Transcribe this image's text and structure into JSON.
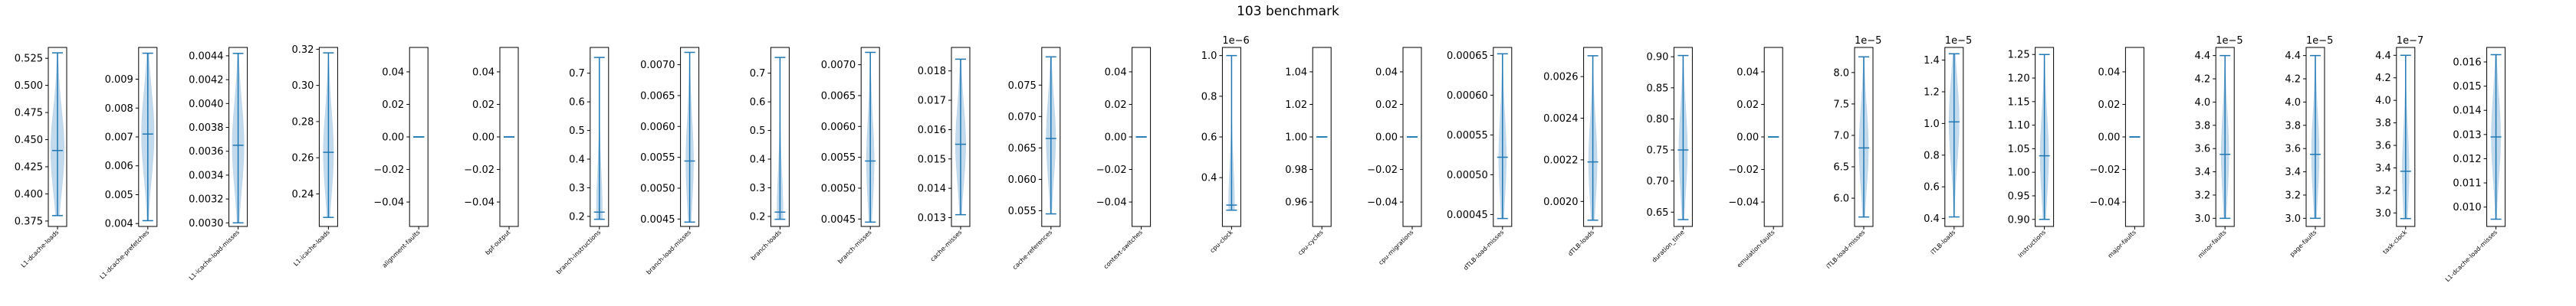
{
  "chart_data": {
    "type": "violin",
    "title": "103 benchmark",
    "colors": {
      "body": "#1f77b4",
      "fill": "#b8d3ea"
    },
    "panels": [
      {
        "name": "L1-dcache-loads",
        "ylim": [
          0.37,
          0.535
        ],
        "ticks": [
          0.375,
          0.4,
          0.425,
          0.45,
          0.475,
          0.5,
          0.525
        ],
        "ticklabels": [
          "0.375",
          "0.400",
          "0.425",
          "0.450",
          "0.475",
          "0.500",
          "0.525"
        ],
        "offset": "",
        "min": 0.38,
        "max": 0.53,
        "median": 0.44,
        "width": 0.8
      },
      {
        "name": "L1-dcache-prefetches",
        "ylim": [
          0.0039,
          0.0101
        ],
        "ticks": [
          0.004,
          0.005,
          0.006,
          0.007,
          0.008,
          0.009
        ],
        "ticklabels": [
          "0.004",
          "0.005",
          "0.006",
          "0.007",
          "0.008",
          "0.009"
        ],
        "offset": "",
        "min": 0.0041,
        "max": 0.0099,
        "median": 0.0071,
        "width": 0.75
      },
      {
        "name": "L1-icache-load-misses",
        "ylim": [
          0.00297,
          0.00447
        ],
        "ticks": [
          0.003,
          0.0032,
          0.0034,
          0.0036,
          0.0038,
          0.004,
          0.0042,
          0.0044
        ],
        "ticklabels": [
          "0.0030",
          "0.0032",
          "0.0034",
          "0.0036",
          "0.0038",
          "0.0040",
          "0.0042",
          "0.0044"
        ],
        "offset": "",
        "min": 0.003,
        "max": 0.00442,
        "median": 0.00365,
        "width": 0.7
      },
      {
        "name": "L1-icache-loads",
        "ylim": [
          0.222,
          0.321
        ],
        "ticks": [
          0.24,
          0.26,
          0.28,
          0.3,
          0.32
        ],
        "ticklabels": [
          "0.24",
          "0.26",
          "0.28",
          "0.30",
          "0.32"
        ],
        "offset": "",
        "min": 0.227,
        "max": 0.318,
        "median": 0.263,
        "width": 0.6
      },
      {
        "name": "alignment-faults",
        "ylim": [
          -0.055,
          0.055
        ],
        "ticks": [
          -0.04,
          -0.02,
          0.0,
          0.02,
          0.04
        ],
        "ticklabels": [
          "−0.04",
          "−0.02",
          "0.00",
          "0.02",
          "0.04"
        ],
        "offset": "",
        "min": 0.0,
        "max": 0.0,
        "median": 0.0,
        "width": 0.0
      },
      {
        "name": "bpf-output",
        "ylim": [
          -0.055,
          0.055
        ],
        "ticks": [
          -0.04,
          -0.02,
          0.0,
          0.02,
          0.04
        ],
        "ticklabels": [
          "−0.04",
          "−0.02",
          "0.00",
          "0.02",
          "0.04"
        ],
        "offset": "",
        "min": 0.0,
        "max": 0.0,
        "median": 0.0,
        "width": 0.0
      },
      {
        "name": "branch-instructions",
        "ylim": [
          0.165,
          0.79
        ],
        "ticks": [
          0.2,
          0.3,
          0.4,
          0.5,
          0.6,
          0.7
        ],
        "ticklabels": [
          "0.2",
          "0.3",
          "0.4",
          "0.5",
          "0.6",
          "0.7"
        ],
        "offset": "",
        "min": 0.19,
        "max": 0.755,
        "median": 0.215,
        "width": 0.35
      },
      {
        "name": "branch-load-misses",
        "ylim": [
          0.00438,
          0.00728
        ],
        "ticks": [
          0.0045,
          0.005,
          0.0055,
          0.006,
          0.0065,
          0.007
        ],
        "ticklabels": [
          "0.0045",
          "0.0050",
          "0.0055",
          "0.0060",
          "0.0065",
          "0.0070"
        ],
        "offset": "",
        "min": 0.00445,
        "max": 0.0072,
        "median": 0.00544,
        "width": 0.45
      },
      {
        "name": "branch-loads",
        "ylim": [
          0.165,
          0.79
        ],
        "ticks": [
          0.2,
          0.3,
          0.4,
          0.5,
          0.6,
          0.7
        ],
        "ticklabels": [
          "0.2",
          "0.3",
          "0.4",
          "0.5",
          "0.6",
          "0.7"
        ],
        "offset": "",
        "min": 0.19,
        "max": 0.755,
        "median": 0.215,
        "width": 0.35
      },
      {
        "name": "branch-misses",
        "ylim": [
          0.00438,
          0.00728
        ],
        "ticks": [
          0.0045,
          0.005,
          0.0055,
          0.006,
          0.0065,
          0.007
        ],
        "ticklabels": [
          "0.0045",
          "0.0050",
          "0.0055",
          "0.0060",
          "0.0065",
          "0.0070"
        ],
        "offset": "",
        "min": 0.00445,
        "max": 0.0072,
        "median": 0.00544,
        "width": 0.45
      },
      {
        "name": "cache-misses",
        "ylim": [
          0.0127,
          0.0188
        ],
        "ticks": [
          0.013,
          0.014,
          0.015,
          0.016,
          0.017,
          0.018
        ],
        "ticklabels": [
          "0.013",
          "0.014",
          "0.015",
          "0.016",
          "0.017",
          "0.018"
        ],
        "offset": "",
        "min": 0.0131,
        "max": 0.0184,
        "median": 0.0155,
        "width": 0.6
      },
      {
        "name": "cache-references",
        "ylim": [
          0.0525,
          0.081
        ],
        "ticks": [
          0.055,
          0.06,
          0.065,
          0.07,
          0.075
        ],
        "ticklabels": [
          "0.055",
          "0.060",
          "0.065",
          "0.070",
          "0.075"
        ],
        "offset": "",
        "min": 0.0545,
        "max": 0.0795,
        "median": 0.0665,
        "width": 0.55
      },
      {
        "name": "context-switches",
        "ylim": [
          -0.055,
          0.055
        ],
        "ticks": [
          -0.04,
          -0.02,
          0.0,
          0.02,
          0.04
        ],
        "ticklabels": [
          "−0.04",
          "−0.02",
          "0.00",
          "0.02",
          "0.04"
        ],
        "offset": "",
        "min": 0.0,
        "max": 0.0,
        "median": 0.0,
        "width": 0.0
      },
      {
        "name": "cpu-clock",
        "ylim": [
          0.16,
          1.04
        ],
        "ticks": [
          0.4,
          0.6,
          0.8,
          1.0
        ],
        "ticklabels": [
          "0.4",
          "0.6",
          "0.8",
          "1.0"
        ],
        "offset": "1e−6",
        "min": 0.24,
        "max": 1.0,
        "median": 0.265,
        "width": 0.35
      },
      {
        "name": "cpu-cycles",
        "ylim": [
          0.945,
          1.055
        ],
        "ticks": [
          0.96,
          0.98,
          1.0,
          1.02,
          1.04
        ],
        "ticklabels": [
          "0.96",
          "0.98",
          "1.00",
          "1.02",
          "1.04"
        ],
        "offset": "",
        "min": 1.0,
        "max": 1.0,
        "median": 1.0,
        "width": 0.0
      },
      {
        "name": "cpu-migrations",
        "ylim": [
          -0.055,
          0.055
        ],
        "ticks": [
          -0.04,
          -0.02,
          0.0,
          0.02,
          0.04
        ],
        "ticklabels": [
          "−0.04",
          "−0.02",
          "0.00",
          "0.02",
          "0.04"
        ],
        "offset": "",
        "min": 0.0,
        "max": 0.0,
        "median": 0.0,
        "width": 0.0
      },
      {
        "name": "dTLB-load-misses",
        "ylim": [
          0.000435,
          0.00066
        ],
        "ticks": [
          0.00045,
          0.0005,
          0.00055,
          0.0006,
          0.00065
        ],
        "ticklabels": [
          "0.00045",
          "0.00050",
          "0.00055",
          "0.00060",
          "0.00065"
        ],
        "offset": "",
        "min": 0.000445,
        "max": 0.000652,
        "median": 0.000522,
        "width": 0.45
      },
      {
        "name": "dTLB-loads",
        "ylim": [
          0.00188,
          0.00274
        ],
        "ticks": [
          0.002,
          0.0022,
          0.0024,
          0.0026
        ],
        "ticklabels": [
          "0.0020",
          "0.0022",
          "0.0024",
          "0.0026"
        ],
        "offset": "",
        "min": 0.00191,
        "max": 0.0027,
        "median": 0.00219,
        "width": 0.5
      },
      {
        "name": "duration_time",
        "ylim": [
          0.627,
          0.915
        ],
        "ticks": [
          0.65,
          0.7,
          0.75,
          0.8,
          0.85,
          0.9
        ],
        "ticklabels": [
          "0.65",
          "0.70",
          "0.75",
          "0.80",
          "0.85",
          "0.90"
        ],
        "offset": "",
        "min": 0.638,
        "max": 0.902,
        "median": 0.75,
        "width": 0.5
      },
      {
        "name": "emulation-faults",
        "ylim": [
          -0.055,
          0.055
        ],
        "ticks": [
          -0.04,
          -0.02,
          0.0,
          0.02,
          0.04
        ],
        "ticklabels": [
          "−0.04",
          "−0.02",
          "0.00",
          "0.02",
          "0.04"
        ],
        "offset": "",
        "min": 0.0,
        "max": 0.0,
        "median": 0.0,
        "width": 0.0
      },
      {
        "name": "iTLB-load-misses",
        "ylim": [
          5.55,
          8.4
        ],
        "ticks": [
          6.0,
          6.5,
          7.0,
          7.5,
          8.0
        ],
        "ticklabels": [
          "6.0",
          "6.5",
          "7.0",
          "7.5",
          "8.0"
        ],
        "offset": "1e−5",
        "min": 5.7,
        "max": 8.25,
        "median": 6.8,
        "width": 0.55
      },
      {
        "name": "iTLB-loads",
        "ylim": [
          0.35,
          1.48
        ],
        "ticks": [
          0.4,
          0.6,
          0.8,
          1.0,
          1.2,
          1.4
        ],
        "ticklabels": [
          "0.4",
          "0.6",
          "0.8",
          "1.0",
          "1.2",
          "1.4"
        ],
        "offset": "1e−5",
        "min": 0.41,
        "max": 1.44,
        "median": 1.01,
        "width": 0.6
      },
      {
        "name": "instructions",
        "ylim": [
          0.885,
          1.265
        ],
        "ticks": [
          0.9,
          0.95,
          1.0,
          1.05,
          1.1,
          1.15,
          1.2,
          1.25
        ],
        "ticklabels": [
          "0.90",
          "0.95",
          "1.00",
          "1.05",
          "1.10",
          "1.15",
          "1.20",
          "1.25"
        ],
        "offset": "",
        "min": 0.9,
        "max": 1.25,
        "median": 1.035,
        "width": 0.5
      },
      {
        "name": "major-faults",
        "ylim": [
          -0.055,
          0.055
        ],
        "ticks": [
          -0.04,
          -0.02,
          0.0,
          0.02,
          0.04
        ],
        "ticklabels": [
          "−0.04",
          "−0.02",
          "0.00",
          "0.02",
          "0.04"
        ],
        "offset": "",
        "min": 0.0,
        "max": 0.0,
        "median": 0.0,
        "width": 0.0
      },
      {
        "name": "minor-faults",
        "ylim": [
          2.93,
          4.47
        ],
        "ticks": [
          3.0,
          3.2,
          3.4,
          3.6,
          3.8,
          4.0,
          4.2,
          4.4
        ],
        "ticklabels": [
          "3.0",
          "3.2",
          "3.4",
          "3.6",
          "3.8",
          "4.0",
          "4.2",
          "4.4"
        ],
        "offset": "1e−5",
        "min": 3.0,
        "max": 4.4,
        "median": 3.55,
        "width": 0.45
      },
      {
        "name": "page-faults",
        "ylim": [
          2.93,
          4.47
        ],
        "ticks": [
          3.0,
          3.2,
          3.4,
          3.6,
          3.8,
          4.0,
          4.2,
          4.4
        ],
        "ticklabels": [
          "3.0",
          "3.2",
          "3.4",
          "3.6",
          "3.8",
          "4.0",
          "4.2",
          "4.4"
        ],
        "offset": "1e−5",
        "min": 3.0,
        "max": 4.4,
        "median": 3.55,
        "width": 0.45
      },
      {
        "name": "task-clock",
        "ylim": [
          2.88,
          4.47
        ],
        "ticks": [
          3.0,
          3.2,
          3.4,
          3.6,
          3.8,
          4.0,
          4.2,
          4.4
        ],
        "ticklabels": [
          "3.0",
          "3.2",
          "3.4",
          "3.6",
          "3.8",
          "4.0",
          "4.2",
          "4.4"
        ],
        "offset": "1e−7",
        "min": 2.95,
        "max": 4.4,
        "median": 3.37,
        "width": 0.4
      },
      {
        "name": "L1-dcache-load-misses",
        "ylim": [
          0.0092,
          0.0166
        ],
        "ticks": [
          0.01,
          0.011,
          0.012,
          0.013,
          0.014,
          0.015,
          0.016
        ],
        "ticklabels": [
          "0.010",
          "0.011",
          "0.012",
          "0.013",
          "0.014",
          "0.015",
          "0.016"
        ],
        "offset": "",
        "min": 0.0095,
        "max": 0.0163,
        "median": 0.0129,
        "width": 0.55
      }
    ]
  }
}
